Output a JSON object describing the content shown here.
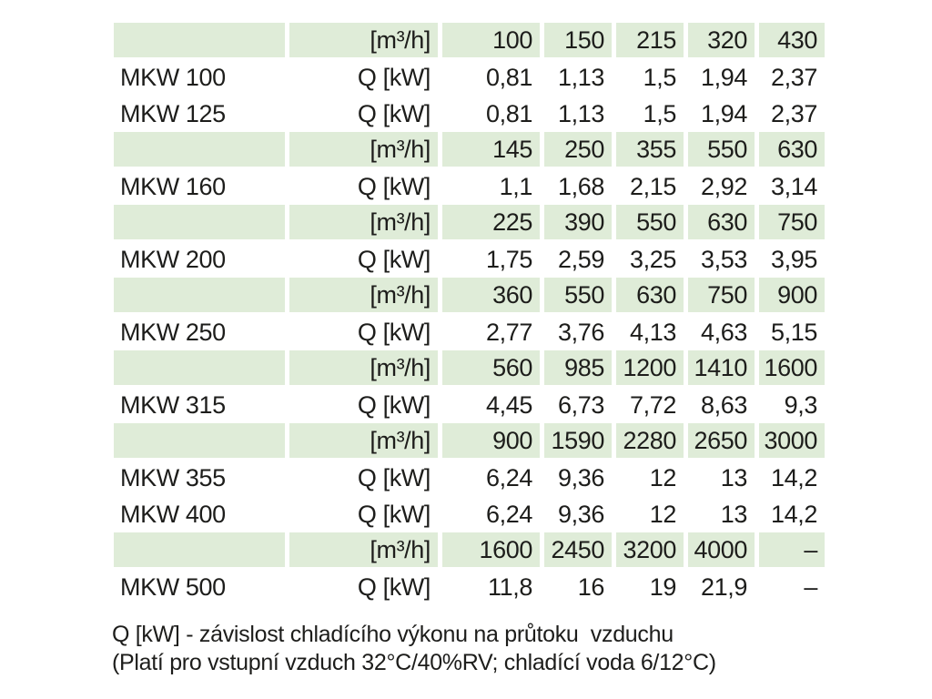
{
  "table": {
    "unit_flow": "[m³/h]",
    "unit_power": "Q [kW]",
    "rows": [
      {
        "type": "flow",
        "label": "",
        "unit": "[m³/h]",
        "values": [
          "100",
          "150",
          "215",
          "320",
          "430"
        ]
      },
      {
        "type": "power",
        "label": "MKW 100",
        "unit": "Q [kW]",
        "values": [
          "0,81",
          "1,13",
          "1,5",
          "1,94",
          "2,37"
        ]
      },
      {
        "type": "power",
        "label": "MKW 125",
        "unit": "Q [kW]",
        "values": [
          "0,81",
          "1,13",
          "1,5",
          "1,94",
          "2,37"
        ]
      },
      {
        "type": "flow",
        "label": "",
        "unit": "[m³/h]",
        "values": [
          "145",
          "250",
          "355",
          "550",
          "630"
        ]
      },
      {
        "type": "power",
        "label": "MKW 160",
        "unit": "Q [kW]",
        "values": [
          "1,1",
          "1,68",
          "2,15",
          "2,92",
          "3,14"
        ]
      },
      {
        "type": "flow",
        "label": "",
        "unit": "[m³/h]",
        "values": [
          "225",
          "390",
          "550",
          "630",
          "750"
        ]
      },
      {
        "type": "power",
        "label": "MKW 200",
        "unit": "Q [kW]",
        "values": [
          "1,75",
          "2,59",
          "3,25",
          "3,53",
          "3,95"
        ]
      },
      {
        "type": "flow",
        "label": "",
        "unit": "[m³/h]",
        "values": [
          "360",
          "550",
          "630",
          "750",
          "900"
        ]
      },
      {
        "type": "power",
        "label": "MKW 250",
        "unit": "Q [kW]",
        "values": [
          "2,77",
          "3,76",
          "4,13",
          "4,63",
          "5,15"
        ]
      },
      {
        "type": "flow",
        "label": "",
        "unit": "[m³/h]",
        "values": [
          "560",
          "985",
          "1200",
          "1410",
          "1600"
        ]
      },
      {
        "type": "power",
        "label": "MKW 315",
        "unit": "Q [kW]",
        "values": [
          "4,45",
          "6,73",
          "7,72",
          "8,63",
          "9,3"
        ]
      },
      {
        "type": "flow",
        "label": "",
        "unit": "[m³/h]",
        "values": [
          "900",
          "1590",
          "2280",
          "2650",
          "3000"
        ]
      },
      {
        "type": "power",
        "label": "MKW 355",
        "unit": "Q [kW]",
        "values": [
          "6,24",
          "9,36",
          "12",
          "13",
          "14,2"
        ]
      },
      {
        "type": "power",
        "label": "MKW 400",
        "unit": "Q [kW]",
        "values": [
          "6,24",
          "9,36",
          "12",
          "13",
          "14,2"
        ]
      },
      {
        "type": "flow",
        "label": "",
        "unit": "[m³/h]",
        "values": [
          "1600",
          "2450",
          "3200",
          "4000",
          "–"
        ]
      },
      {
        "type": "power",
        "label": "MKW 500",
        "unit": "Q [kW]",
        "values": [
          "11,8",
          "16",
          "19",
          "21,9",
          "–"
        ]
      }
    ]
  },
  "footnote": {
    "line1": "Q [kW] - závislost chladícího výkonu na průtoku  vzduchu",
    "line2": "(Platí pro vstupní vzduch 32°C/40%RV; chladící voda 6/12°C)"
  },
  "colors": {
    "row_highlight": "#dfecd8",
    "text": "#1d1d1b",
    "background": "#ffffff"
  }
}
